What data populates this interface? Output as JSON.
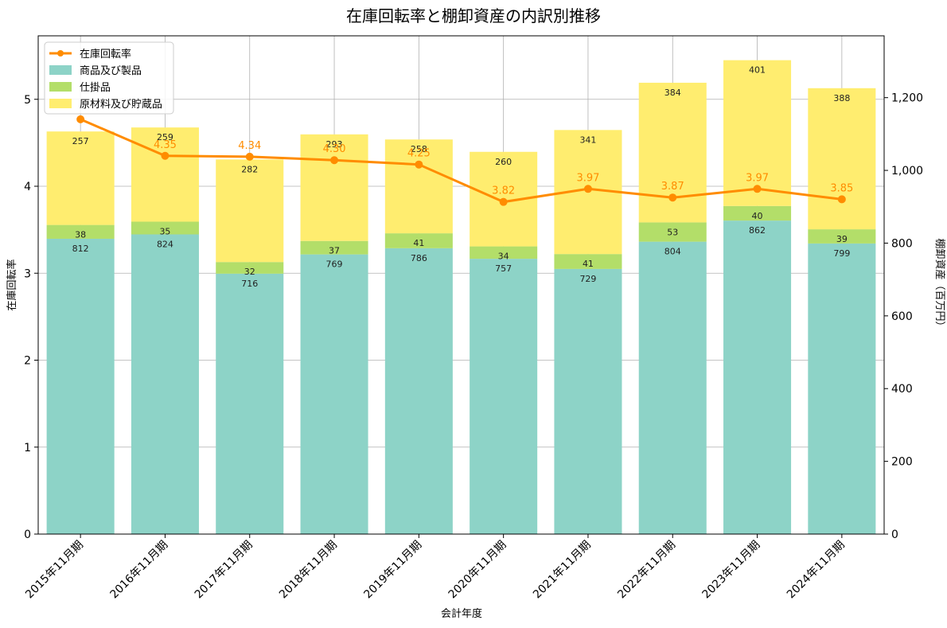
{
  "chart_data": {
    "type": "bar",
    "title": "在庫回転率と棚卸資産の内訳別推移",
    "xlabel": "会計年度",
    "ylabel_left": "在庫回転率",
    "ylabel_right": "棚卸資産（百万円）",
    "categories": [
      "2015年11月期",
      "2016年11月期",
      "2017年11月期",
      "2018年11月期",
      "2019年11月期",
      "2020年11月期",
      "2021年11月期",
      "2022年11月期",
      "2023年11月期",
      "2024年11月期"
    ],
    "series": [
      {
        "name": "商品及び製品",
        "color": "#8dd3c7",
        "axis": "right",
        "kind": "bar",
        "values": [
          812,
          824,
          716,
          769,
          786,
          757,
          729,
          804,
          862,
          799
        ]
      },
      {
        "name": "仕掛品",
        "color": "#b3de69",
        "axis": "right",
        "kind": "bar",
        "values": [
          38,
          35,
          32,
          37,
          41,
          34,
          41,
          53,
          40,
          39
        ]
      },
      {
        "name": "原材料及び貯蔵品",
        "color": "#ffed6f",
        "axis": "right",
        "kind": "bar",
        "values": [
          257,
          259,
          282,
          293,
          258,
          260,
          341,
          384,
          401,
          388
        ]
      },
      {
        "name": "在庫回転率",
        "color": "#ff8c00",
        "axis": "left",
        "kind": "line",
        "values": [
          4.77,
          4.35,
          4.34,
          4.3,
          4.25,
          3.82,
          3.97,
          3.87,
          3.97,
          3.85
        ]
      }
    ],
    "line_data_labels": [
      "",
      "4.35",
      "4.34",
      "4.30",
      "4.25",
      "3.82",
      "3.97",
      "3.87",
      "3.97",
      "3.85"
    ],
    "ylim_left": [
      0,
      5.73
    ],
    "ylim_right": [
      0,
      1370
    ],
    "yticks_left": [
      "0",
      "1",
      "2",
      "3",
      "4",
      "5"
    ],
    "yticks_right": [
      "0",
      "200",
      "400",
      "600",
      "800",
      "1,000",
      "1,200"
    ],
    "grid": true,
    "legend_position": "top-left"
  }
}
